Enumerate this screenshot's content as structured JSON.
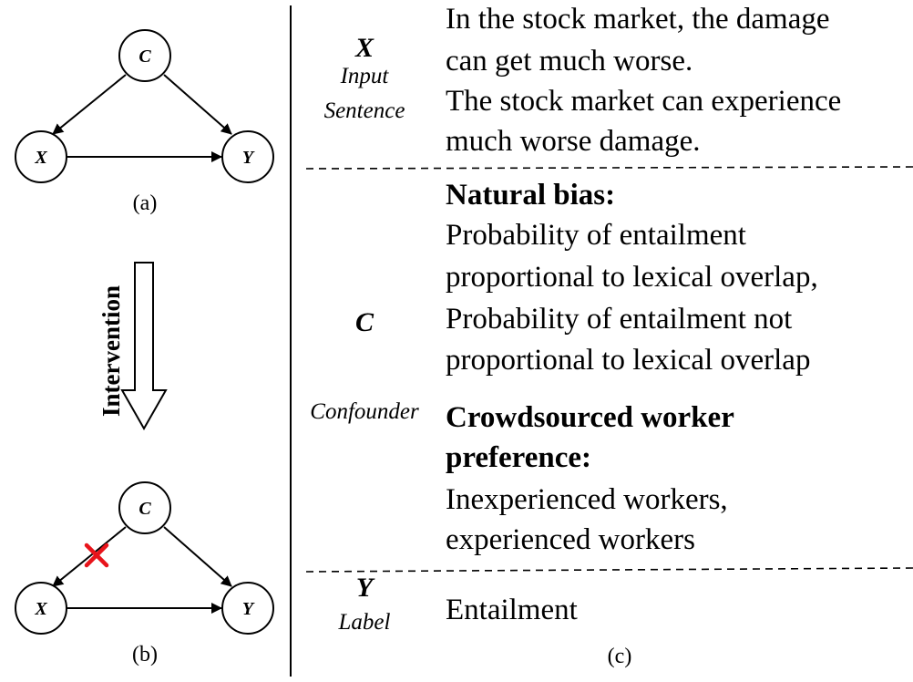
{
  "graph_a": {
    "nodes": {
      "c": "C",
      "x": "X",
      "y": "Y"
    },
    "caption": "(a)"
  },
  "intervention": {
    "label": "Intervention"
  },
  "graph_b": {
    "nodes": {
      "c": "C",
      "x": "X",
      "y": "Y"
    },
    "caption": "(b)",
    "cut_edge_mark_color": "#e8141b"
  },
  "table": {
    "caption": "(c)",
    "rows": [
      {
        "symbol": "X",
        "label_lines": [
          "Input",
          "Sentence"
        ],
        "content_lines": [
          "In the stock market, the damage",
          "can get much worse.",
          "The stock market can experience",
          "much worse damage."
        ]
      },
      {
        "symbol": "C",
        "label": "Confounder",
        "groups": [
          {
            "heading_lines": [
              "Natural bias:"
            ],
            "lines": [
              "Probability of entailment",
              "proportional to lexical overlap,",
              "Probability of entailment not",
              "proportional to lexical overlap"
            ]
          },
          {
            "heading_lines": [
              "Crowdsourced worker",
              "preference:"
            ],
            "lines": [
              "Inexperienced workers,",
              "experienced workers"
            ]
          }
        ]
      },
      {
        "symbol": "Y",
        "label": "Label",
        "content_lines": [
          "Entailment"
        ]
      }
    ]
  }
}
